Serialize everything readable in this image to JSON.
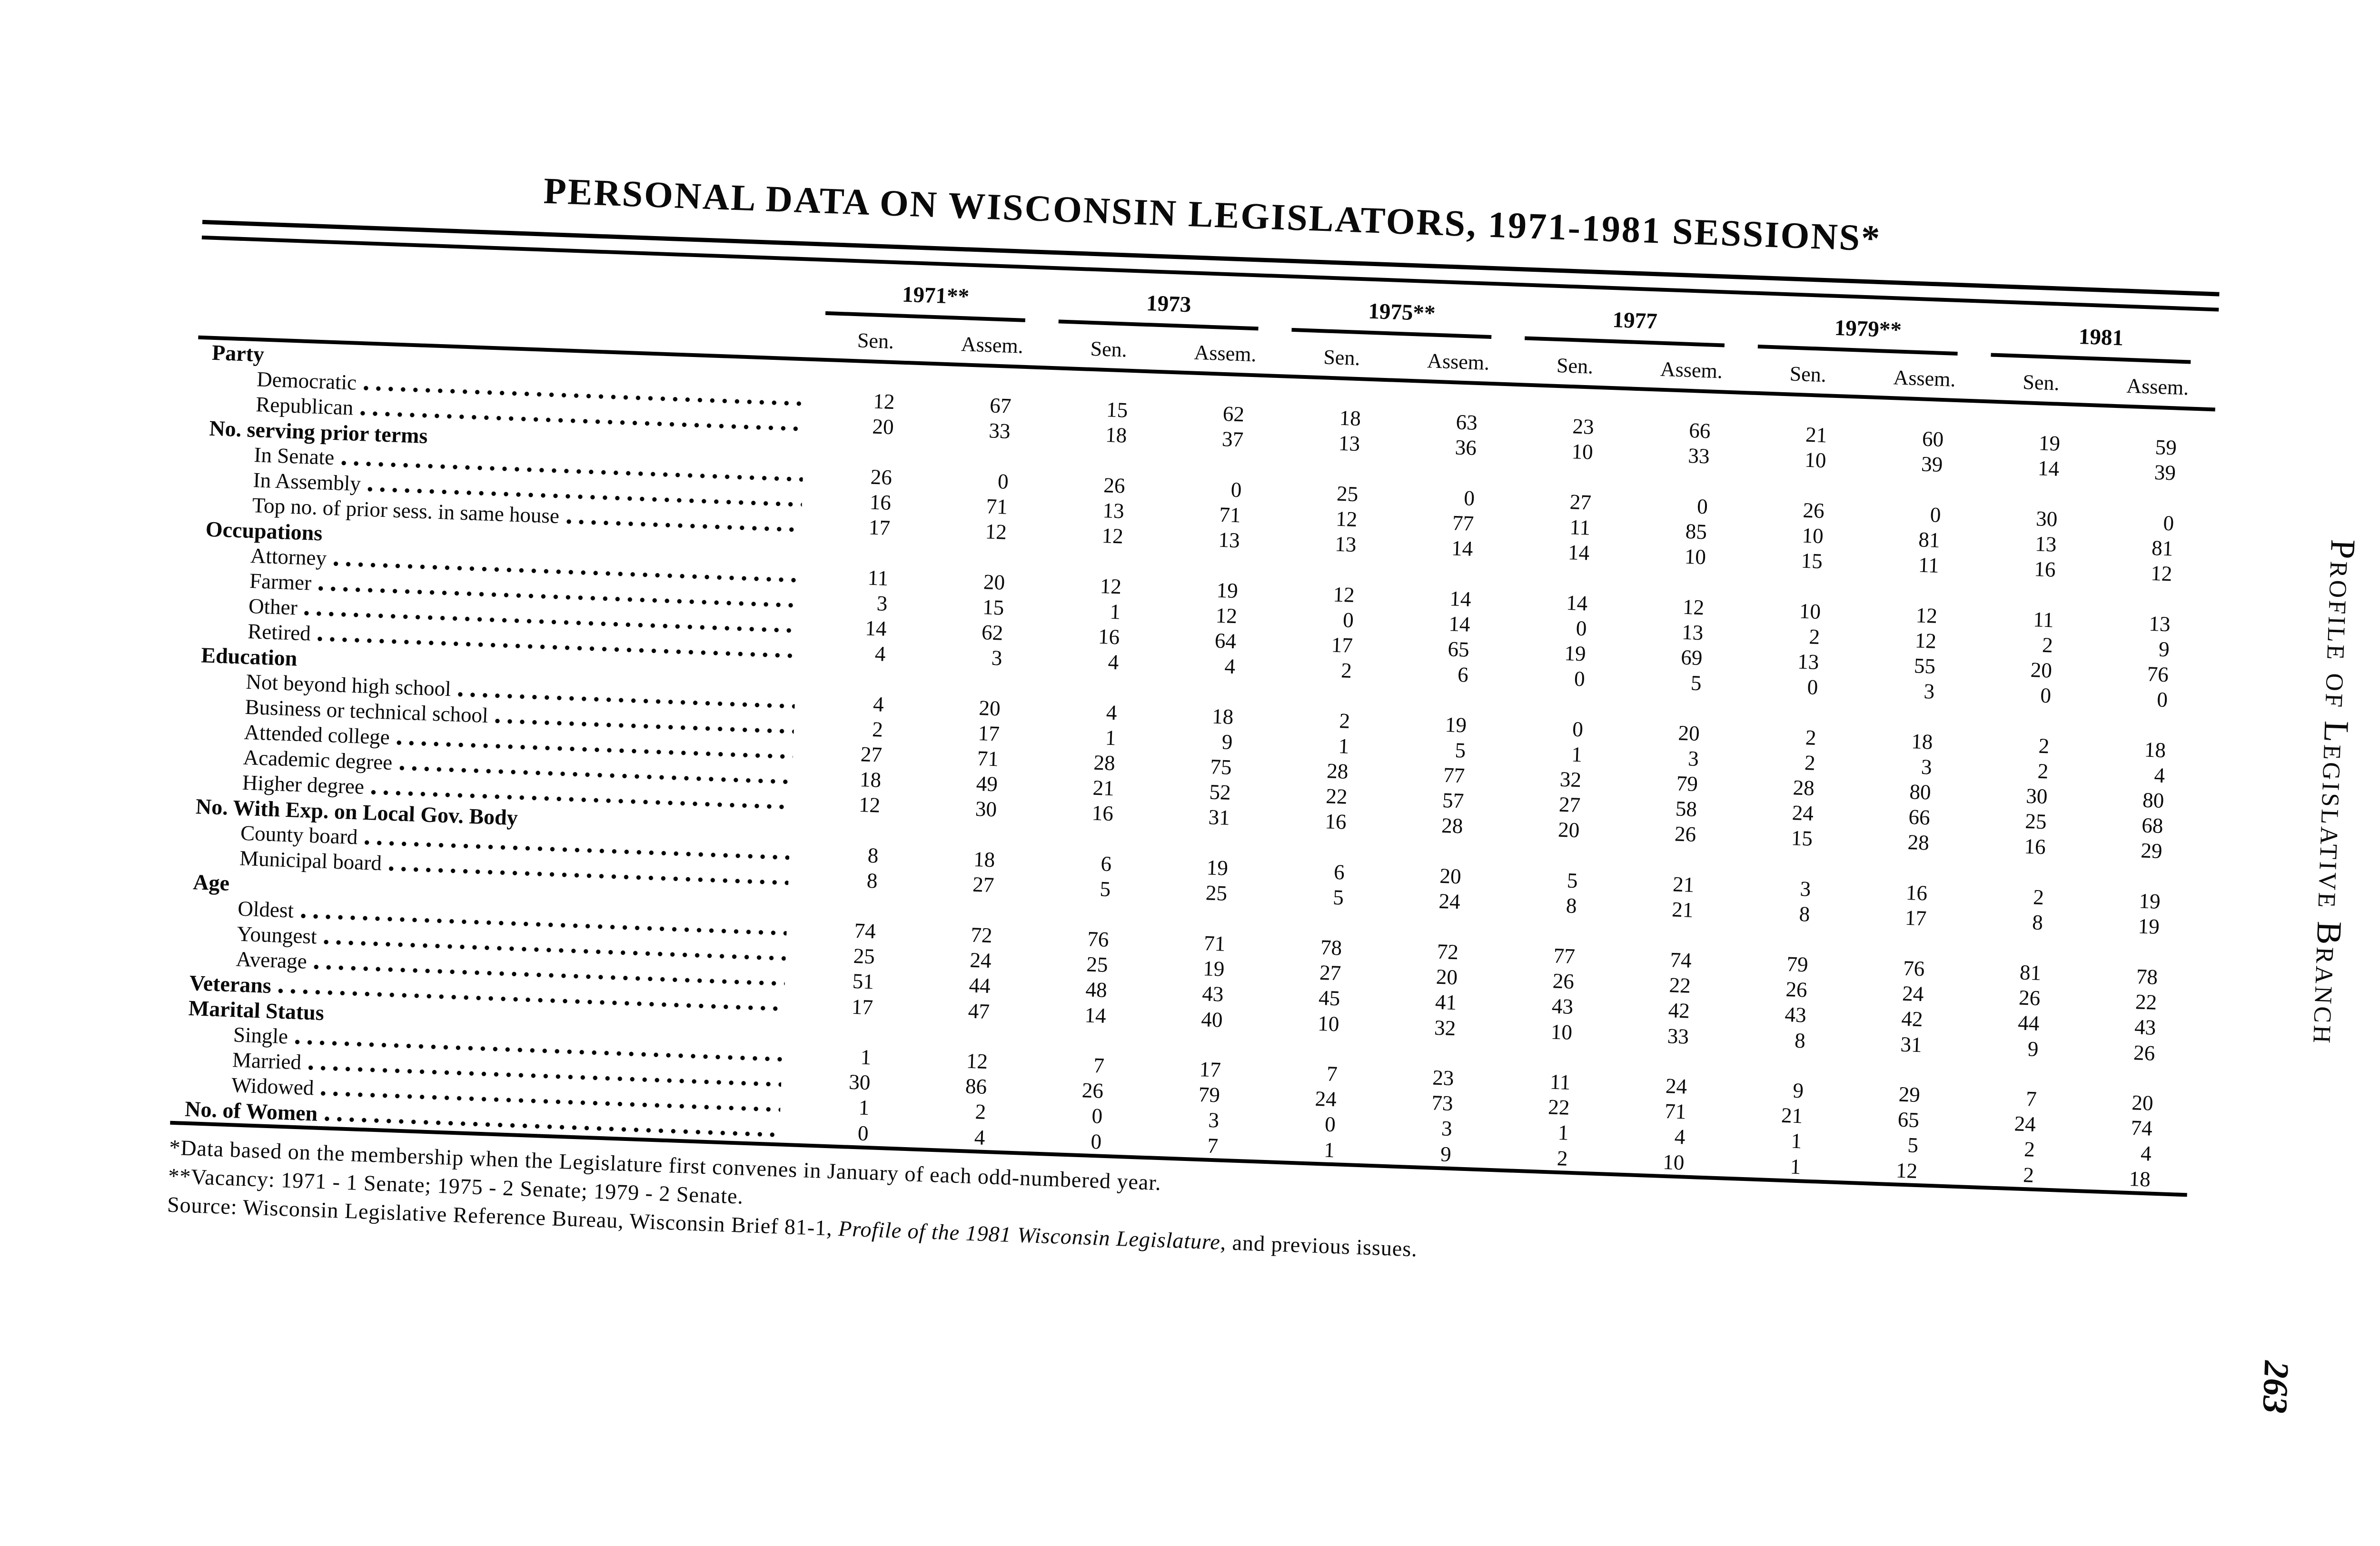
{
  "title": "PERSONAL DATA ON WISCONSIN LEGISLATORS, 1971-1981 SESSIONS*",
  "side_text": "Profile of Legislative Branch",
  "page_number": "263",
  "table": {
    "years": [
      "1971**",
      "1973",
      "1975**",
      "1977",
      "1979**",
      "1981"
    ],
    "sub_headers": [
      "Sen.",
      "Assem."
    ],
    "rows": [
      {
        "label": "Party",
        "group": true,
        "dots": false,
        "values": null
      },
      {
        "label": "Democratic",
        "indent": 1,
        "dots": true,
        "values": [
          12,
          67,
          15,
          62,
          18,
          63,
          23,
          66,
          21,
          60,
          19,
          59
        ]
      },
      {
        "label": "Republican",
        "indent": 1,
        "dots": true,
        "values": [
          20,
          33,
          18,
          37,
          13,
          36,
          10,
          33,
          10,
          39,
          14,
          39
        ]
      },
      {
        "label": "No. serving prior terms",
        "group": true,
        "dots": false,
        "values": null
      },
      {
        "label": "In Senate",
        "indent": 1,
        "dots": true,
        "values": [
          26,
          0,
          26,
          0,
          25,
          0,
          27,
          0,
          26,
          0,
          30,
          0
        ]
      },
      {
        "label": "In Assembly",
        "indent": 1,
        "dots": true,
        "values": [
          16,
          71,
          13,
          71,
          12,
          77,
          11,
          85,
          10,
          81,
          13,
          81
        ]
      },
      {
        "label": "Top no. of prior sess. in same house",
        "indent": 1,
        "dots": true,
        "values": [
          17,
          12,
          12,
          13,
          13,
          14,
          14,
          10,
          15,
          11,
          16,
          12
        ]
      },
      {
        "label": "Occupations",
        "group": true,
        "dots": false,
        "values": null
      },
      {
        "label": "Attorney",
        "indent": 1,
        "dots": true,
        "values": [
          11,
          20,
          12,
          19,
          12,
          14,
          14,
          12,
          10,
          12,
          11,
          13
        ]
      },
      {
        "label": "Farmer",
        "indent": 1,
        "dots": true,
        "values": [
          3,
          15,
          1,
          12,
          0,
          14,
          0,
          13,
          2,
          12,
          2,
          9
        ]
      },
      {
        "label": "Other",
        "indent": 1,
        "dots": true,
        "values": [
          14,
          62,
          16,
          64,
          17,
          65,
          19,
          69,
          13,
          55,
          20,
          76
        ]
      },
      {
        "label": "Retired",
        "indent": 1,
        "dots": true,
        "values": [
          4,
          3,
          4,
          4,
          2,
          6,
          0,
          5,
          0,
          3,
          0,
          0
        ]
      },
      {
        "label": "Education",
        "group": true,
        "dots": false,
        "values": null
      },
      {
        "label": "Not beyond high school",
        "indent": 1,
        "dots": true,
        "values": [
          4,
          20,
          4,
          18,
          2,
          19,
          0,
          20,
          2,
          18,
          2,
          18
        ]
      },
      {
        "label": "Business or technical school",
        "indent": 1,
        "dots": true,
        "values": [
          2,
          17,
          1,
          9,
          1,
          5,
          1,
          3,
          2,
          3,
          2,
          4
        ]
      },
      {
        "label": "Attended college",
        "indent": 1,
        "dots": true,
        "values": [
          27,
          71,
          28,
          75,
          28,
          77,
          32,
          79,
          28,
          80,
          30,
          80
        ]
      },
      {
        "label": "Academic degree",
        "indent": 1,
        "dots": true,
        "values": [
          18,
          49,
          21,
          52,
          22,
          57,
          27,
          58,
          24,
          66,
          25,
          68
        ]
      },
      {
        "label": "Higher degree",
        "indent": 1,
        "dots": true,
        "values": [
          12,
          30,
          16,
          31,
          16,
          28,
          20,
          26,
          15,
          28,
          16,
          29
        ]
      },
      {
        "label": "No. With Exp. on Local Gov. Body",
        "group": true,
        "dots": false,
        "values": null
      },
      {
        "label": "County board",
        "indent": 1,
        "dots": true,
        "values": [
          8,
          18,
          6,
          19,
          6,
          20,
          5,
          21,
          3,
          16,
          2,
          19
        ]
      },
      {
        "label": "Municipal board",
        "indent": 1,
        "dots": true,
        "values": [
          8,
          27,
          5,
          25,
          5,
          24,
          8,
          21,
          8,
          17,
          8,
          19
        ]
      },
      {
        "label": "Age",
        "group": true,
        "dots": false,
        "values": null
      },
      {
        "label": "Oldest",
        "indent": 1,
        "dots": true,
        "values": [
          74,
          72,
          76,
          71,
          78,
          72,
          77,
          74,
          79,
          76,
          81,
          78
        ]
      },
      {
        "label": "Youngest",
        "indent": 1,
        "dots": true,
        "values": [
          25,
          24,
          25,
          19,
          27,
          20,
          26,
          22,
          26,
          24,
          26,
          22
        ]
      },
      {
        "label": "Average",
        "indent": 1,
        "dots": true,
        "values": [
          51,
          44,
          48,
          43,
          45,
          41,
          43,
          42,
          43,
          42,
          44,
          43
        ]
      },
      {
        "label": "Veterans",
        "group": true,
        "dots": true,
        "values": [
          17,
          47,
          14,
          40,
          10,
          32,
          10,
          33,
          8,
          31,
          9,
          26
        ]
      },
      {
        "label": "Marital Status",
        "group": true,
        "dots": false,
        "values": null
      },
      {
        "label": "Single",
        "indent": 1,
        "dots": true,
        "values": [
          1,
          12,
          7,
          17,
          7,
          23,
          11,
          24,
          9,
          29,
          7,
          20
        ]
      },
      {
        "label": "Married",
        "indent": 1,
        "dots": true,
        "values": [
          30,
          86,
          26,
          79,
          24,
          73,
          22,
          71,
          21,
          65,
          24,
          74
        ]
      },
      {
        "label": "Widowed",
        "indent": 1,
        "dots": true,
        "values": [
          1,
          2,
          0,
          3,
          0,
          3,
          1,
          4,
          1,
          5,
          2,
          4
        ]
      },
      {
        "label": "No. of Women",
        "group": true,
        "dots": true,
        "values": [
          0,
          4,
          0,
          7,
          1,
          9,
          2,
          10,
          1,
          12,
          2,
          18
        ]
      }
    ]
  },
  "footnotes": {
    "note1": "*Data based on the membership when the Legislature first convenes in January of each odd-numbered year.",
    "note2": "**Vacancy: 1971 - 1 Senate; 1975 - 2 Senate; 1979 - 2 Senate.",
    "source_prefix": "Source: Wisconsin Legislative Reference Bureau, Wisconsin Brief 81-1, ",
    "source_italic": "Profile of the 1981 Wisconsin Legislature",
    "source_suffix": ", and previous issues."
  }
}
